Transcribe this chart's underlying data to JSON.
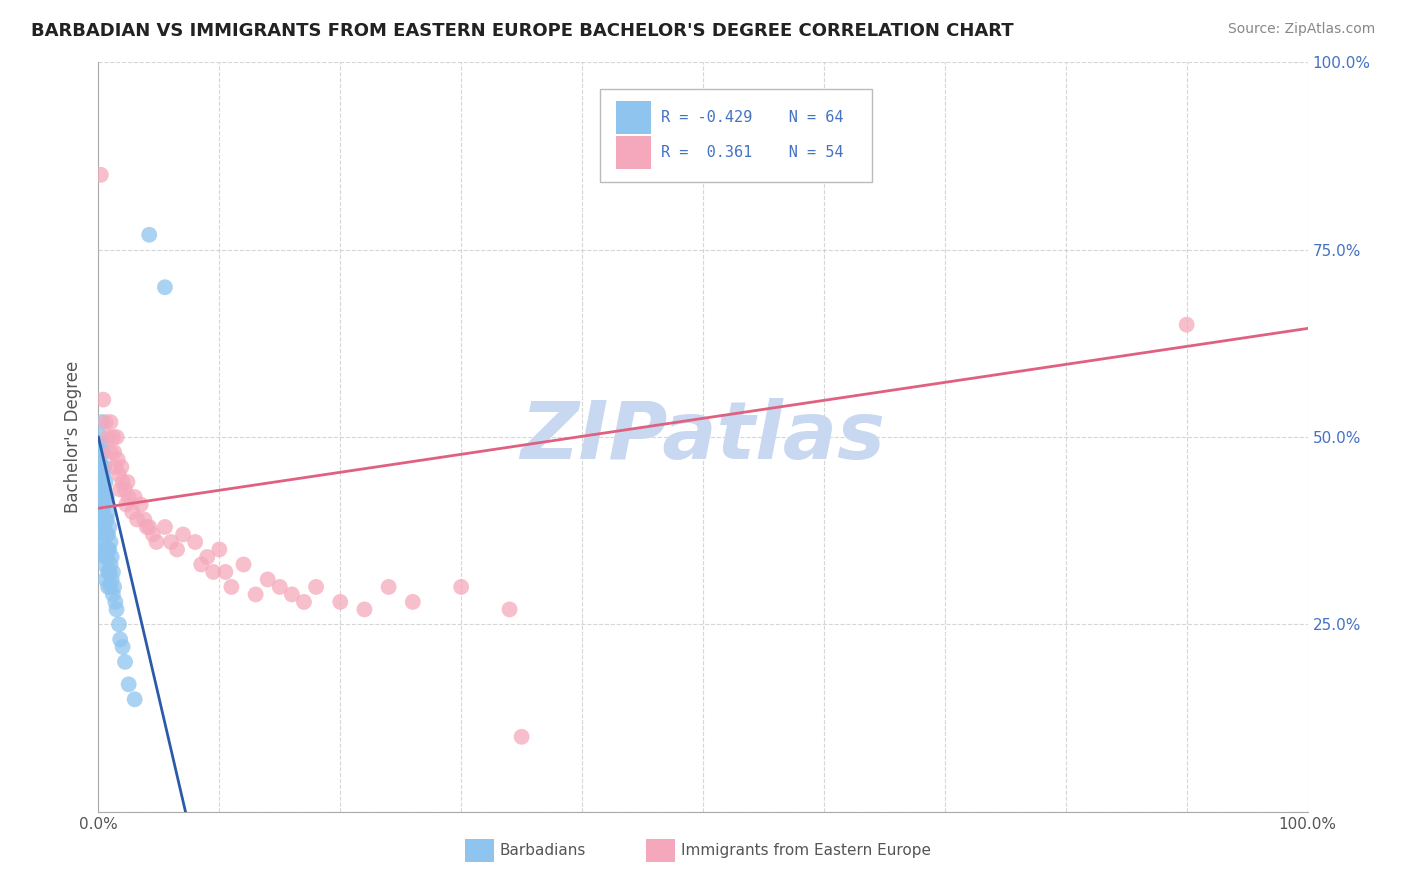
{
  "title": "BARBADIAN VS IMMIGRANTS FROM EASTERN EUROPE BACHELOR'S DEGREE CORRELATION CHART",
  "source": "Source: ZipAtlas.com",
  "ylabel": "Bachelor's Degree",
  "color_blue": "#8EC4EE",
  "color_pink": "#F5A8BC",
  "color_blue_line": "#2B5BA8",
  "color_pink_line": "#E06080",
  "watermark": "ZIPatlas",
  "watermark_color": "#C8D8F0",
  "background_color": "#FFFFFF",
  "grid_color": "#CCCCCC",
  "title_color": "#222222",
  "axis_label_color": "#555555",
  "source_color": "#888888",
  "legend_text_color": "#4472C4",
  "right_ytick_color": "#4472C4",
  "blue_points_x": [
    0.001,
    0.001,
    0.001,
    0.002,
    0.002,
    0.002,
    0.002,
    0.002,
    0.002,
    0.003,
    0.003,
    0.003,
    0.003,
    0.003,
    0.003,
    0.003,
    0.004,
    0.004,
    0.004,
    0.004,
    0.004,
    0.004,
    0.005,
    0.005,
    0.005,
    0.005,
    0.005,
    0.005,
    0.006,
    0.006,
    0.006,
    0.006,
    0.006,
    0.006,
    0.007,
    0.007,
    0.007,
    0.007,
    0.008,
    0.008,
    0.008,
    0.008,
    0.008,
    0.009,
    0.009,
    0.009,
    0.01,
    0.01,
    0.01,
    0.011,
    0.011,
    0.012,
    0.012,
    0.013,
    0.014,
    0.015,
    0.017,
    0.018,
    0.02,
    0.022,
    0.025,
    0.03,
    0.042,
    0.055
  ],
  "blue_points_y": [
    0.47,
    0.44,
    0.41,
    0.5,
    0.48,
    0.46,
    0.44,
    0.42,
    0.4,
    0.52,
    0.49,
    0.46,
    0.43,
    0.41,
    0.38,
    0.36,
    0.48,
    0.45,
    0.42,
    0.4,
    0.37,
    0.35,
    0.46,
    0.43,
    0.41,
    0.38,
    0.35,
    0.33,
    0.44,
    0.42,
    0.39,
    0.37,
    0.34,
    0.31,
    0.42,
    0.39,
    0.37,
    0.34,
    0.4,
    0.37,
    0.35,
    0.32,
    0.3,
    0.38,
    0.35,
    0.32,
    0.36,
    0.33,
    0.3,
    0.34,
    0.31,
    0.32,
    0.29,
    0.3,
    0.28,
    0.27,
    0.25,
    0.23,
    0.22,
    0.2,
    0.17,
    0.15,
    0.77,
    0.7
  ],
  "pink_points_x": [
    0.002,
    0.004,
    0.006,
    0.008,
    0.01,
    0.01,
    0.012,
    0.013,
    0.014,
    0.015,
    0.016,
    0.017,
    0.018,
    0.019,
    0.02,
    0.022,
    0.023,
    0.024,
    0.025,
    0.028,
    0.03,
    0.032,
    0.035,
    0.038,
    0.04,
    0.042,
    0.045,
    0.048,
    0.055,
    0.06,
    0.065,
    0.07,
    0.08,
    0.085,
    0.09,
    0.095,
    0.1,
    0.105,
    0.11,
    0.12,
    0.13,
    0.14,
    0.15,
    0.16,
    0.17,
    0.18,
    0.2,
    0.22,
    0.24,
    0.26,
    0.3,
    0.34,
    0.9,
    0.35
  ],
  "pink_points_y": [
    0.85,
    0.55,
    0.52,
    0.5,
    0.52,
    0.48,
    0.5,
    0.48,
    0.46,
    0.5,
    0.47,
    0.45,
    0.43,
    0.46,
    0.44,
    0.43,
    0.41,
    0.44,
    0.42,
    0.4,
    0.42,
    0.39,
    0.41,
    0.39,
    0.38,
    0.38,
    0.37,
    0.36,
    0.38,
    0.36,
    0.35,
    0.37,
    0.36,
    0.33,
    0.34,
    0.32,
    0.35,
    0.32,
    0.3,
    0.33,
    0.29,
    0.31,
    0.3,
    0.29,
    0.28,
    0.3,
    0.28,
    0.27,
    0.3,
    0.28,
    0.3,
    0.27,
    0.65,
    0.1
  ],
  "blue_line_x": [
    0.0,
    0.072
  ],
  "blue_line_y": [
    0.5,
    0.0
  ],
  "pink_line_x": [
    0.0,
    1.0
  ],
  "pink_line_y": [
    0.405,
    0.645
  ],
  "xlim": [
    0,
    1.0
  ],
  "ylim": [
    0,
    1.0
  ],
  "ytick_vals": [
    0.0,
    0.25,
    0.5,
    0.75,
    1.0
  ],
  "ytick_labels_right": [
    "",
    "25.0%",
    "50.0%",
    "75.0%",
    "100.0%"
  ],
  "xtick_vals": [
    0.0,
    0.1,
    0.2,
    0.3,
    0.4,
    0.5,
    0.6,
    0.7,
    0.8,
    0.9,
    1.0
  ],
  "xtick_labels": [
    "0.0%",
    "",
    "",
    "",
    "",
    "",
    "",
    "",
    "",
    "",
    "100.0%"
  ]
}
